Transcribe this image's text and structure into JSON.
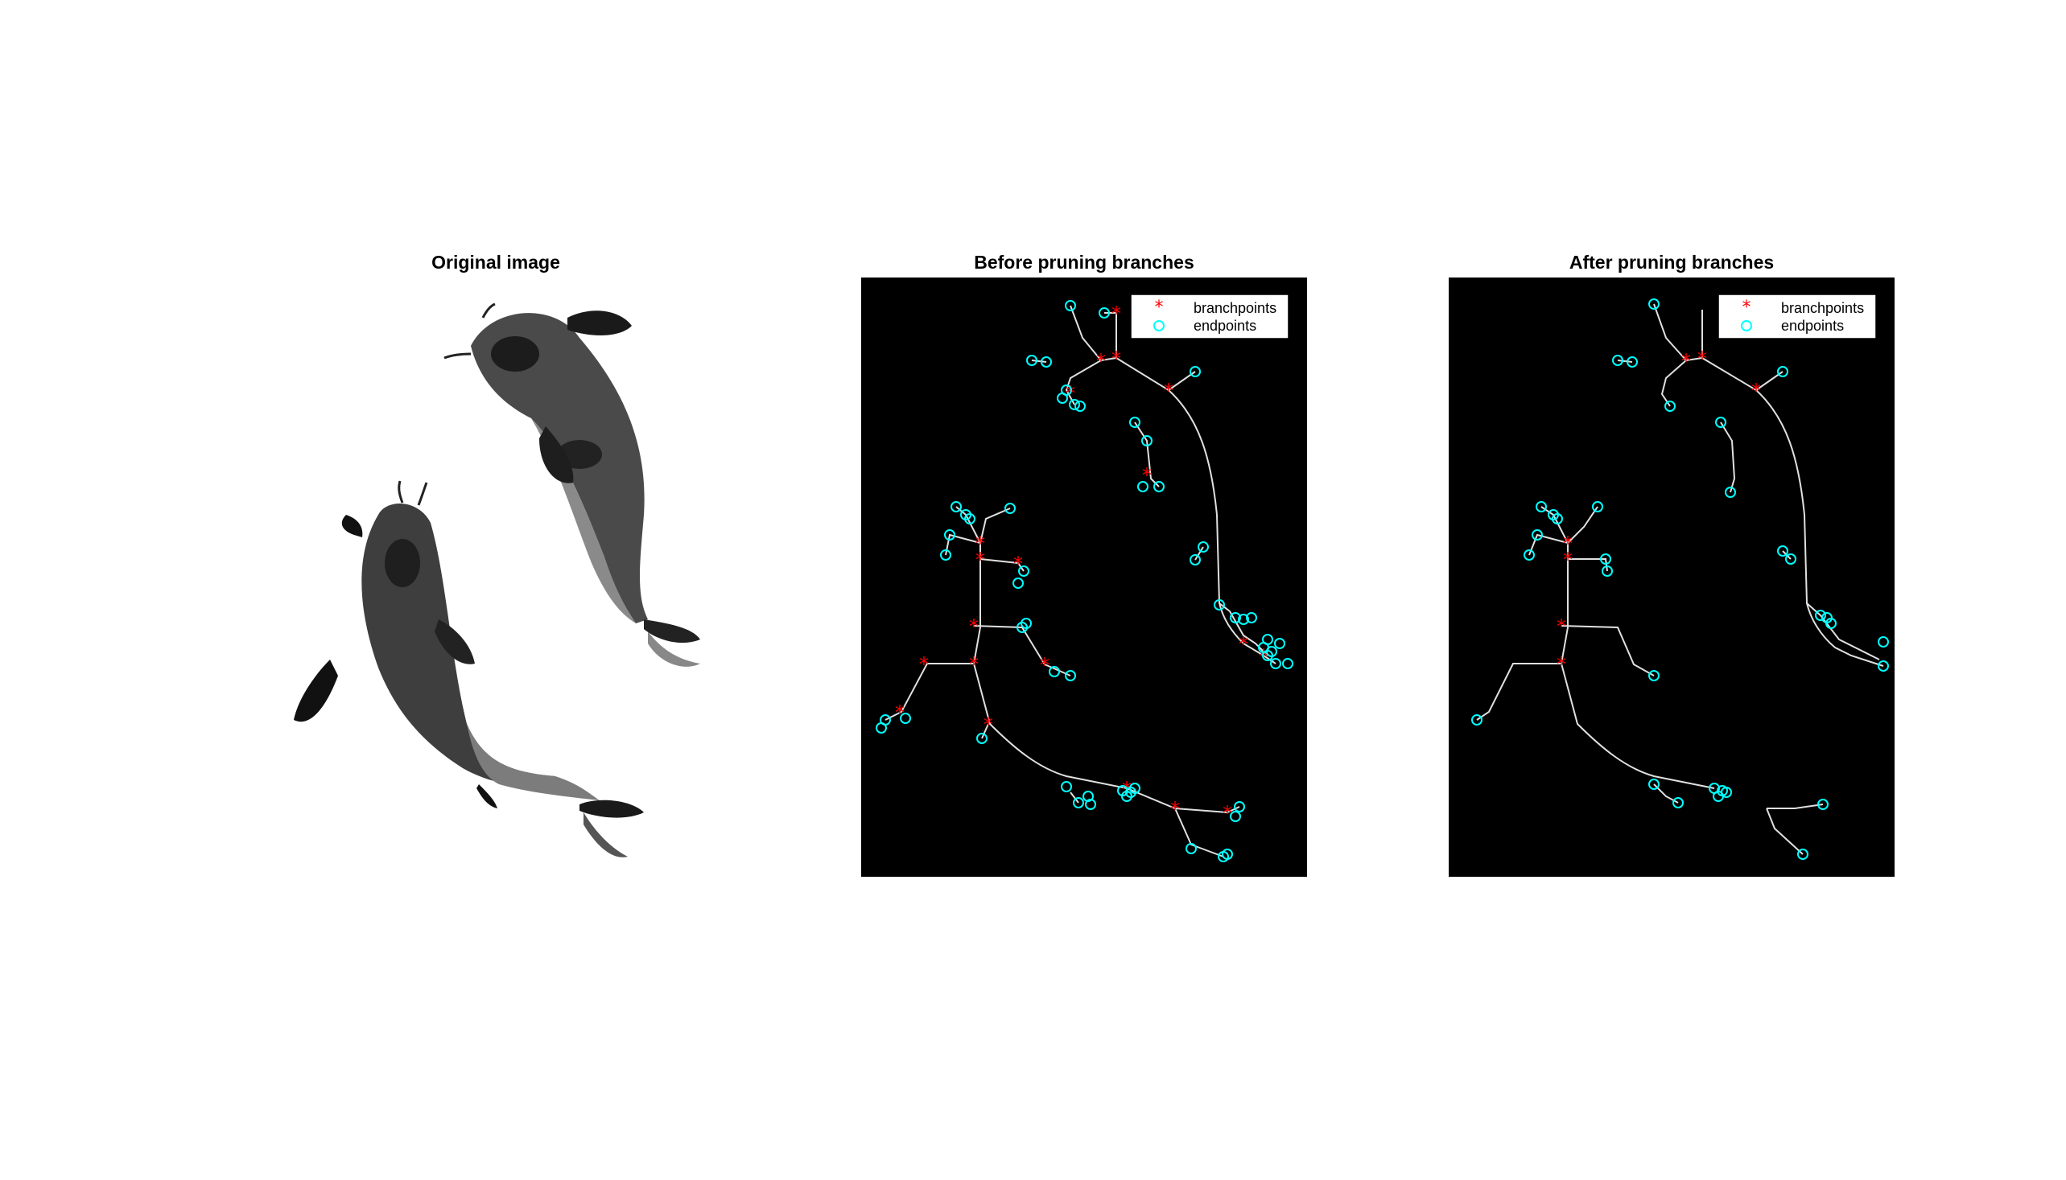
{
  "figure": {
    "panels": [
      {
        "id": "original",
        "title": "Original image"
      },
      {
        "id": "before",
        "title": "Before pruning branches",
        "legend": [
          "branchpoints",
          "endpoints"
        ]
      },
      {
        "id": "after",
        "title": "After pruning branches",
        "legend": [
          "branchpoints",
          "endpoints"
        ]
      }
    ]
  },
  "colors": {
    "branchpoint": "#ff0000",
    "endpoint": "#00ffff",
    "skeleton": "#e8e8e8",
    "canvas": "#000000"
  }
}
